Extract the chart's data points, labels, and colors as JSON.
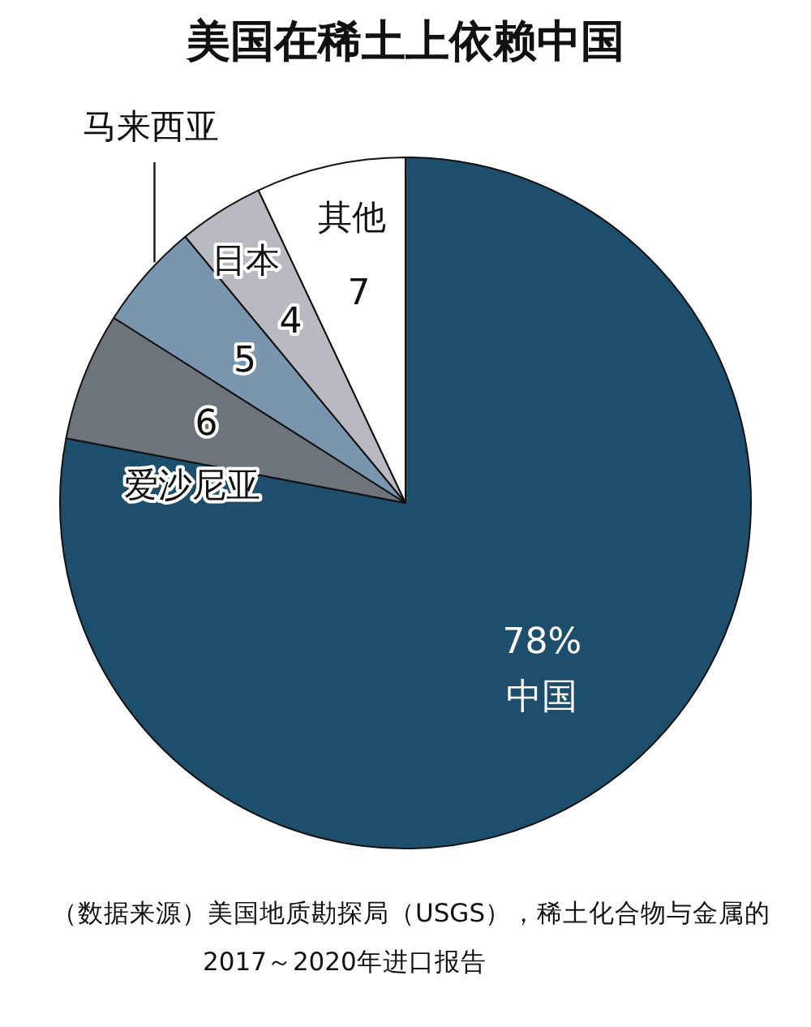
{
  "chart_data": {
    "type": "pie",
    "title": "美国在稀土上依赖中国",
    "categories": [
      "中国",
      "爱沙尼亚",
      "马来西亚",
      "日本",
      "其他"
    ],
    "values": [
      78,
      6,
      5,
      4,
      7
    ],
    "colors": [
      "#1d4e6b",
      "#6d747c",
      "#7a96ae",
      "#b9b9c2",
      "#ffffff"
    ],
    "value_labels": [
      "78%",
      "6",
      "5",
      "4",
      "7"
    ],
    "annotations": [
      "（数据来源）美国地质勘探局（USGS），稀土化合物与金属的2017～2020年进口报告"
    ]
  }
}
